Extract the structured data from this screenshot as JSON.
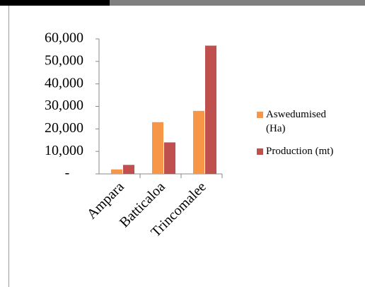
{
  "chart_data": {
    "type": "bar",
    "categories": [
      "Ampara",
      "Batticaloa",
      "Trincomalee"
    ],
    "series": [
      {
        "name": "Aswedumised (Ha)",
        "color": "#f79646",
        "values": [
          2000,
          23000,
          28000
        ]
      },
      {
        "name": "Production (mt)",
        "color": "#c0504d",
        "values": [
          4000,
          14000,
          57000
        ]
      }
    ],
    "ylim": [
      0,
      60000
    ],
    "yticks": [
      {
        "value": 0,
        "label": "-"
      },
      {
        "value": 10000,
        "label": "10,000"
      },
      {
        "value": 20000,
        "label": "20,000"
      },
      {
        "value": 30000,
        "label": "30,000"
      },
      {
        "value": 40000,
        "label": "40,000"
      },
      {
        "value": 50000,
        "label": "50,000"
      },
      {
        "value": 60000,
        "label": "60,000"
      }
    ],
    "legend": "right"
  }
}
